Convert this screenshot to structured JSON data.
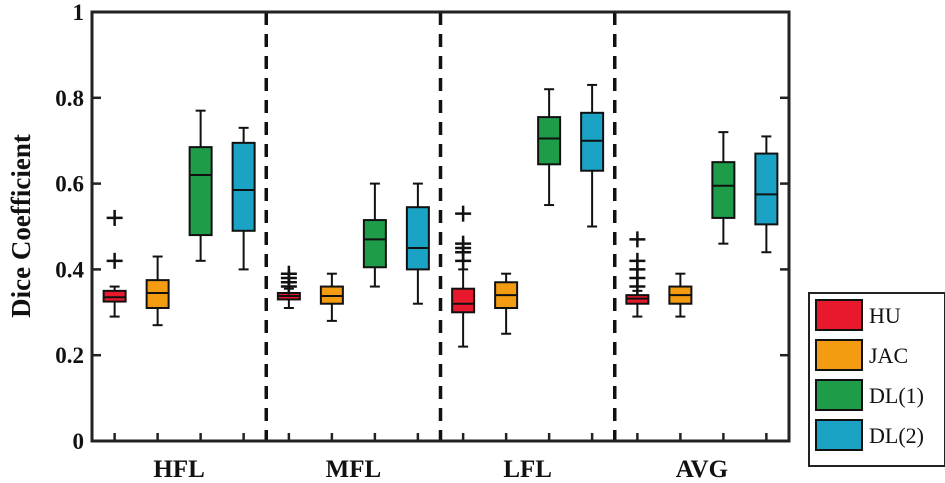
{
  "chart_data": {
    "type": "box",
    "ylabel": "Dice Coefficient",
    "xlabel": "",
    "ylim": [
      0,
      1
    ],
    "yticks": [
      "0",
      "0.2",
      "0.4",
      "0.6",
      "0.8",
      "1"
    ],
    "categories": [
      "HFL",
      "MFL",
      "LFL",
      "AVG"
    ],
    "legend_position": "outside-right-bottom",
    "grid": false,
    "series": [
      {
        "name": "HU",
        "color": "#e8192c",
        "boxes": [
          {
            "min": 0.29,
            "q1": 0.325,
            "median": 0.335,
            "q3": 0.35,
            "max": 0.36,
            "outliers": [
              0.42,
              0.52
            ]
          },
          {
            "min": 0.31,
            "q1": 0.33,
            "median": 0.338,
            "q3": 0.345,
            "max": 0.355,
            "outliers": [
              0.36,
              0.37,
              0.38,
              0.39
            ]
          },
          {
            "min": 0.22,
            "q1": 0.3,
            "median": 0.32,
            "q3": 0.355,
            "max": 0.4,
            "outliers": [
              0.42,
              0.44,
              0.45,
              0.46,
              0.53
            ]
          },
          {
            "min": 0.29,
            "q1": 0.32,
            "median": 0.332,
            "q3": 0.34,
            "max": 0.35,
            "outliers": [
              0.36,
              0.38,
              0.4,
              0.42,
              0.47
            ]
          }
        ]
      },
      {
        "name": "JAC",
        "color": "#f39c12",
        "boxes": [
          {
            "min": 0.27,
            "q1": 0.31,
            "median": 0.345,
            "q3": 0.375,
            "max": 0.43,
            "outliers": []
          },
          {
            "min": 0.28,
            "q1": 0.32,
            "median": 0.338,
            "q3": 0.36,
            "max": 0.39,
            "outliers": []
          },
          {
            "min": 0.25,
            "q1": 0.31,
            "median": 0.34,
            "q3": 0.37,
            "max": 0.39,
            "outliers": []
          },
          {
            "min": 0.29,
            "q1": 0.32,
            "median": 0.34,
            "q3": 0.36,
            "max": 0.39,
            "outliers": []
          }
        ]
      },
      {
        "name": "DL(1)",
        "color": "#1f9c4a",
        "boxes": [
          {
            "min": 0.42,
            "q1": 0.48,
            "median": 0.62,
            "q3": 0.685,
            "max": 0.77,
            "outliers": []
          },
          {
            "min": 0.36,
            "q1": 0.405,
            "median": 0.47,
            "q3": 0.515,
            "max": 0.6,
            "outliers": []
          },
          {
            "min": 0.55,
            "q1": 0.645,
            "median": 0.705,
            "q3": 0.755,
            "max": 0.82,
            "outliers": []
          },
          {
            "min": 0.46,
            "q1": 0.52,
            "median": 0.595,
            "q3": 0.65,
            "max": 0.72,
            "outliers": []
          }
        ]
      },
      {
        "name": "DL(2)",
        "color": "#1aa3c4",
        "boxes": [
          {
            "min": 0.4,
            "q1": 0.49,
            "median": 0.585,
            "q3": 0.695,
            "max": 0.73,
            "outliers": []
          },
          {
            "min": 0.32,
            "q1": 0.4,
            "median": 0.45,
            "q3": 0.545,
            "max": 0.6,
            "outliers": []
          },
          {
            "min": 0.5,
            "q1": 0.63,
            "median": 0.7,
            "q3": 0.765,
            "max": 0.83,
            "outliers": []
          },
          {
            "min": 0.44,
            "q1": 0.505,
            "median": 0.575,
            "q3": 0.67,
            "max": 0.71,
            "outliers": []
          }
        ]
      }
    ]
  }
}
